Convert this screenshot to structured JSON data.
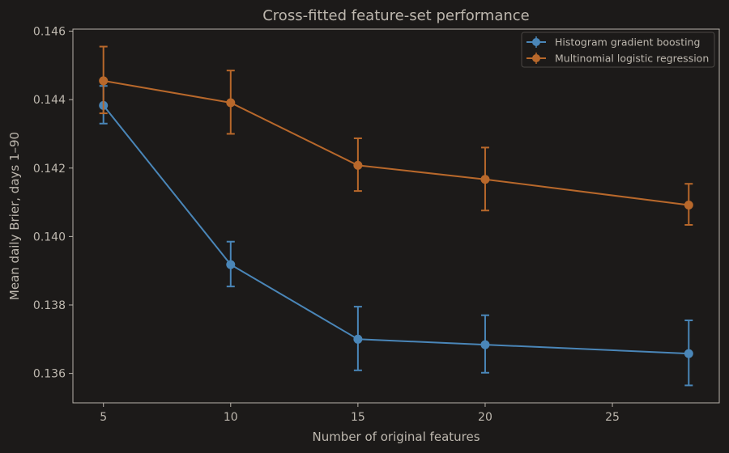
{
  "chart_data": {
    "type": "line",
    "title": "Cross-fitted feature-set performance",
    "xlabel": "Number of original features",
    "ylabel": "Mean daily Brier, days 1–90",
    "x": [
      5,
      10,
      15,
      20,
      28
    ],
    "xlim": [
      3.8,
      29.2
    ],
    "ylim": [
      0.13514,
      0.14606
    ],
    "xticks": [
      "5",
      "10",
      "15",
      "20",
      "25"
    ],
    "xtick_values": [
      5,
      10,
      15,
      20,
      25
    ],
    "yticks": [
      "0.136",
      "0.138",
      "0.140",
      "0.142",
      "0.144",
      "0.146"
    ],
    "ytick_values": [
      0.136,
      0.138,
      0.14,
      0.142,
      0.144,
      0.146
    ],
    "grid": false,
    "legend_position": "top-right",
    "series": [
      {
        "name": "Histogram gradient boosting",
        "color": "#4a86b8",
        "values": [
          0.14383,
          0.13918,
          0.137,
          0.13684,
          0.13658
        ],
        "err_low": [
          0.1433,
          0.13854,
          0.13609,
          0.13602,
          0.13565
        ],
        "err_high": [
          0.1444,
          0.13985,
          0.13795,
          0.1377,
          0.13755
        ]
      },
      {
        "name": "Multinomial logistic regression",
        "color": "#b8682b",
        "values": [
          0.14455,
          0.14391,
          0.14208,
          0.14167,
          0.14092
        ],
        "err_low": [
          0.1436,
          0.143,
          0.14133,
          0.14076,
          0.14034
        ],
        "err_high": [
          0.14555,
          0.14485,
          0.14287,
          0.1426,
          0.14154
        ]
      }
    ]
  }
}
